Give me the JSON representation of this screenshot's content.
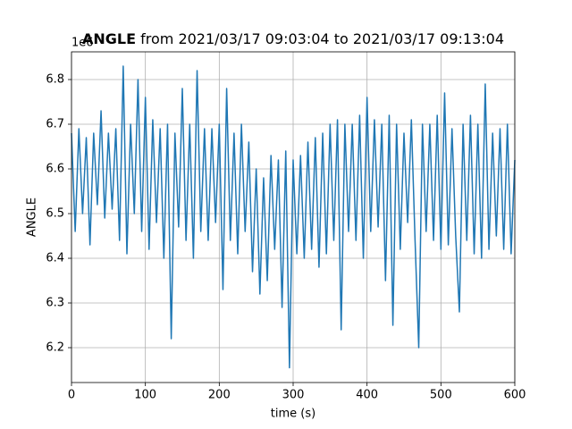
{
  "chart_data": {
    "type": "line",
    "title_bold": "ANGLE",
    "title_rest": " from 2021/03/17 09:03:04 to 2021/03/17 09:13:04",
    "x_label": "time (s)",
    "y_label": "ANGLE",
    "y_offset": "1e6",
    "color": "#1f77b4",
    "grid": true,
    "xlim": [
      0,
      600
    ],
    "xticks": [
      0,
      100,
      200,
      300,
      400,
      500,
      600
    ],
    "ylim": [
      6.122,
      6.862
    ],
    "yticks": [
      6.2,
      6.3,
      6.4,
      6.5,
      6.6,
      6.7,
      6.8
    ],
    "x": [
      0,
      5,
      10,
      15,
      20,
      25,
      30,
      35,
      40,
      45,
      50,
      55,
      60,
      65,
      70,
      75,
      80,
      85,
      90,
      95,
      100,
      105,
      110,
      115,
      120,
      125,
      130,
      135,
      140,
      145,
      150,
      155,
      160,
      165,
      170,
      175,
      180,
      185,
      190,
      195,
      200,
      205,
      210,
      215,
      220,
      225,
      230,
      235,
      240,
      245,
      250,
      255,
      260,
      265,
      270,
      275,
      280,
      285,
      290,
      295,
      300,
      305,
      310,
      315,
      320,
      325,
      330,
      335,
      340,
      345,
      350,
      355,
      360,
      365,
      370,
      375,
      380,
      385,
      390,
      395,
      400,
      405,
      410,
      415,
      420,
      425,
      430,
      435,
      440,
      445,
      450,
      455,
      460,
      465,
      470,
      475,
      480,
      485,
      490,
      495,
      500,
      505,
      510,
      515,
      520,
      525,
      530,
      535,
      540,
      545,
      550,
      555,
      560,
      565,
      570,
      575,
      580,
      585,
      590,
      595,
      600
    ],
    "values": [
      6.68,
      6.46,
      6.69,
      6.5,
      6.67,
      6.43,
      6.68,
      6.52,
      6.73,
      6.49,
      6.68,
      6.51,
      6.69,
      6.44,
      6.83,
      6.41,
      6.7,
      6.5,
      6.8,
      6.46,
      6.76,
      6.42,
      6.71,
      6.48,
      6.69,
      6.4,
      6.7,
      6.22,
      6.68,
      6.47,
      6.78,
      6.44,
      6.7,
      6.4,
      6.82,
      6.46,
      6.69,
      6.44,
      6.69,
      6.48,
      6.7,
      6.33,
      6.78,
      6.44,
      6.68,
      6.41,
      6.7,
      6.46,
      6.66,
      6.37,
      6.6,
      6.32,
      6.58,
      6.35,
      6.63,
      6.42,
      6.62,
      6.29,
      6.64,
      6.155,
      6.62,
      6.41,
      6.63,
      6.4,
      6.66,
      6.42,
      6.67,
      6.38,
      6.68,
      6.41,
      6.7,
      6.44,
      6.71,
      6.24,
      6.7,
      6.46,
      6.7,
      6.44,
      6.72,
      6.4,
      6.76,
      6.46,
      6.71,
      6.47,
      6.7,
      6.35,
      6.72,
      6.25,
      6.7,
      6.42,
      6.68,
      6.48,
      6.71,
      6.44,
      6.2,
      6.7,
      6.46,
      6.7,
      6.44,
      6.72,
      6.42,
      6.77,
      6.43,
      6.69,
      6.45,
      6.28,
      6.7,
      6.44,
      6.72,
      6.41,
      6.7,
      6.4,
      6.79,
      6.42,
      6.68,
      6.45,
      6.69,
      6.42,
      6.7,
      6.41,
      6.62
    ]
  }
}
